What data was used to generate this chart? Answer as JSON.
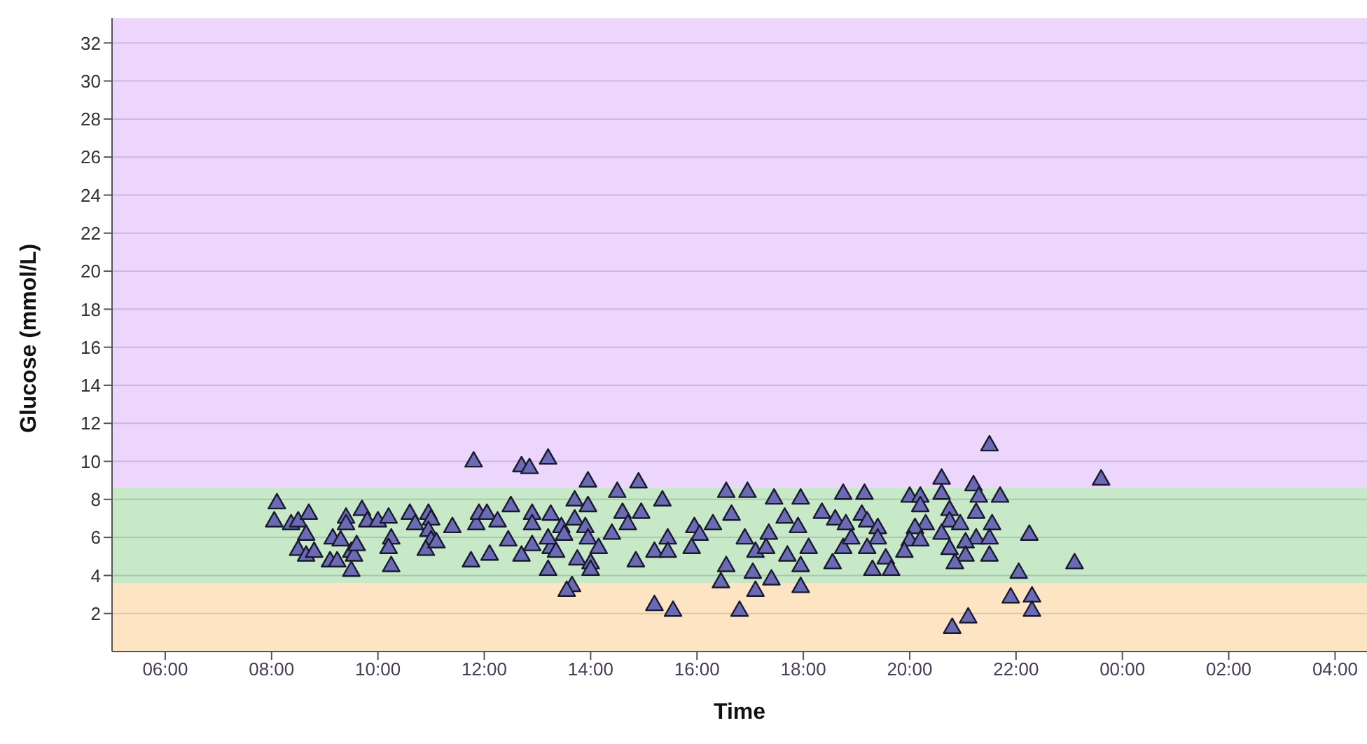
{
  "chart_data": {
    "type": "scatter",
    "xlabel": "Time",
    "ylabel": "Glucose (mmol/L)",
    "xlim": [
      "2000-01-01T05:00",
      "2000-01-02T04:36"
    ],
    "ylim": [
      0,
      33.3
    ],
    "xticks": [
      {
        "value": "2000-01-01T06:00",
        "label": "06:00"
      },
      {
        "value": "2000-01-01T08:00",
        "label": "08:00"
      },
      {
        "value": "2000-01-01T10:00",
        "label": "10:00"
      },
      {
        "value": "2000-01-01T12:00",
        "label": "12:00"
      },
      {
        "value": "2000-01-01T14:00",
        "label": "14:00"
      },
      {
        "value": "2000-01-01T16:00",
        "label": "16:00"
      },
      {
        "value": "2000-01-01T18:00",
        "label": "18:00"
      },
      {
        "value": "2000-01-01T20:00",
        "label": "20:00"
      },
      {
        "value": "2000-01-01T22:00",
        "label": "22:00"
      },
      {
        "value": "2000-01-02T00:00",
        "label": "00:00"
      },
      {
        "value": "2000-01-02T02:00",
        "label": "02:00"
      },
      {
        "value": "2000-01-02T04:00",
        "label": "04:00"
      }
    ],
    "yticks": [
      2,
      4,
      6,
      8,
      10,
      12,
      14,
      16,
      18,
      20,
      22,
      24,
      26,
      28,
      30,
      32
    ],
    "grid": "y",
    "marker": "triangle",
    "legend": false,
    "bands": [
      {
        "axis": "y",
        "from": 0,
        "to": 3.6,
        "color": "#fcdcb0"
      },
      {
        "axis": "y",
        "from": 3.6,
        "to": 8.6,
        "color": "#b4e2b4"
      },
      {
        "axis": "y",
        "from": 8.6,
        "to": 33.3,
        "color": "#e6c8fa"
      }
    ],
    "series": [
      {
        "color": "#6b6bb5",
        "x": [
          "2000-01-01T08:06",
          "2000-01-01T08:03",
          "2000-01-01T08:22",
          "2000-01-01T08:30",
          "2000-01-01T08:42",
          "2000-01-01T08:39",
          "2000-01-01T08:30",
          "2000-01-01T08:39",
          "2000-01-01T08:48",
          "2000-01-01T09:09",
          "2000-01-01T09:06",
          "2000-01-01T09:14",
          "2000-01-01T09:18",
          "2000-01-01T09:24",
          "2000-01-01T09:24",
          "2000-01-01T09:30",
          "2000-01-01T09:33",
          "2000-01-01T09:30",
          "2000-01-01T09:36",
          "2000-01-01T09:42",
          "2000-01-01T09:48",
          "2000-01-01T10:00",
          "2000-01-01T10:12",
          "2000-01-01T10:15",
          "2000-01-01T10:12",
          "2000-01-01T10:15",
          "2000-01-01T10:36",
          "2000-01-01T10:42",
          "2000-01-01T10:57",
          "2000-01-01T11:00",
          "2000-01-01T10:57",
          "2000-01-01T11:00",
          "2000-01-01T10:54",
          "2000-01-01T11:06",
          "2000-01-01T11:24",
          "2000-01-01T11:48",
          "2000-01-01T11:45",
          "2000-01-01T11:51",
          "2000-01-01T11:54",
          "2000-01-01T12:03",
          "2000-01-01T12:15",
          "2000-01-01T12:06",
          "2000-01-01T12:27",
          "2000-01-01T12:30",
          "2000-01-01T12:42",
          "2000-01-01T12:51",
          "2000-01-01T12:42",
          "2000-01-01T12:54",
          "2000-01-01T12:54",
          "2000-01-01T12:54",
          "2000-01-01T13:12",
          "2000-01-01T13:12",
          "2000-01-01T13:15",
          "2000-01-01T13:57",
          "2000-01-01T14:30",
          "2000-01-01T14:54",
          "2000-01-01T15:21",
          "2000-01-01T13:42",
          "2000-01-01T13:57",
          "2000-01-01T13:15",
          "2000-01-01T13:27",
          "2000-01-01T13:42",
          "2000-01-01T13:54",
          "2000-01-01T13:12",
          "2000-01-01T13:30",
          "2000-01-01T13:57",
          "2000-01-01T14:09",
          "2000-01-01T13:21",
          "2000-01-01T13:45",
          "2000-01-01T14:00",
          "2000-01-01T14:00",
          "2000-01-01T13:39",
          "2000-01-01T13:33",
          "2000-01-01T14:24",
          "2000-01-01T14:36",
          "2000-01-01T14:42",
          "2000-01-01T14:57",
          "2000-01-01T14:51",
          "2000-01-01T15:27",
          "2000-01-01T15:12",
          "2000-01-01T15:27",
          "2000-01-01T15:12",
          "2000-01-01T15:33",
          "2000-01-01T15:57",
          "2000-01-01T16:03",
          "2000-01-01T15:54",
          "2000-01-01T16:18",
          "2000-01-01T16:33",
          "2000-01-01T16:57",
          "2000-01-01T16:39",
          "2000-01-01T16:54",
          "2000-01-01T17:06",
          "2000-01-01T17:21",
          "2000-01-01T17:18",
          "2000-01-01T16:33",
          "2000-01-01T16:27",
          "2000-01-01T16:48",
          "2000-01-01T17:03",
          "2000-01-01T17:24",
          "2000-01-01T17:06",
          "2000-01-01T17:27",
          "2000-01-01T17:39",
          "2000-01-01T17:54",
          "2000-01-01T17:57",
          "2000-01-01T17:42",
          "2000-01-01T17:57",
          "2000-01-01T18:06",
          "2000-01-01T17:57",
          "2000-01-01T18:21",
          "2000-01-01T18:36",
          "2000-01-01T18:45",
          "2000-01-01T18:45",
          "2000-01-01T18:33",
          "2000-01-01T21:30",
          "2000-01-01T23:36",
          "2000-01-01T20:36",
          "2000-01-01T21:12",
          "2000-01-01T19:09",
          "2000-01-01T20:00",
          "2000-01-01T20:12",
          "2000-01-01T20:36",
          "2000-01-01T21:18",
          "2000-01-01T21:42",
          "2000-01-01T20:12",
          "2000-01-01T20:45",
          "2000-01-01T19:06",
          "2000-01-01T21:15",
          "2000-01-01T18:48",
          "2000-01-01T19:12",
          "2000-01-01T19:24",
          "2000-01-01T20:18",
          "2000-01-01T20:45",
          "2000-01-01T20:57",
          "2000-01-01T21:33",
          "2000-01-01T20:06",
          "2000-01-01T20:36",
          "2000-01-01T18:54",
          "2000-01-01T19:24",
          "2000-01-01T20:00",
          "2000-01-01T20:12",
          "2000-01-01T21:15",
          "2000-01-01T21:30",
          "2000-01-01T22:15",
          "2000-01-01T21:03",
          "2000-01-01T19:12",
          "2000-01-01T19:54",
          "2000-01-01T20:45",
          "2000-01-01T21:03",
          "2000-01-01T21:30",
          "2000-01-01T19:33",
          "2000-01-01T20:51",
          "2000-01-01T19:18",
          "2000-01-01T19:39",
          "2000-01-01T23:06",
          "2000-01-01T22:03",
          "2000-01-01T21:54",
          "2000-01-01T22:18",
          "2000-01-01T22:18",
          "2000-01-01T21:06",
          "2000-01-01T20:48"
        ],
        "values": [
          7.85,
          6.9,
          6.75,
          6.9,
          7.3,
          6.2,
          5.4,
          5.1,
          5.3,
          6.0,
          4.8,
          4.8,
          5.9,
          7.1,
          6.75,
          5.3,
          5.1,
          4.3,
          5.65,
          7.5,
          6.9,
          6.9,
          7.1,
          6.0,
          5.5,
          4.55,
          7.3,
          6.75,
          7.3,
          7.0,
          6.4,
          5.9,
          5.4,
          5.8,
          6.6,
          10.05,
          4.8,
          6.75,
          7.3,
          7.3,
          6.9,
          5.15,
          5.9,
          7.7,
          9.8,
          9.7,
          5.1,
          7.3,
          6.75,
          5.65,
          4.35,
          10.2,
          5.5,
          9.0,
          8.45,
          8.95,
          8.0,
          8.0,
          7.7,
          7.25,
          6.6,
          7.0,
          6.6,
          6.0,
          6.2,
          6.0,
          5.5,
          5.3,
          4.9,
          4.7,
          4.35,
          3.5,
          3.25,
          6.25,
          7.35,
          6.75,
          7.35,
          4.8,
          6.0,
          5.3,
          5.3,
          2.5,
          2.2,
          6.6,
          6.2,
          5.5,
          6.75,
          8.45,
          8.45,
          7.25,
          6.0,
          5.3,
          6.25,
          5.5,
          4.55,
          3.7,
          2.2,
          4.2,
          3.85,
          3.25,
          8.1,
          7.1,
          6.6,
          8.1,
          5.1,
          4.55,
          5.5,
          3.45,
          7.35,
          7.0,
          8.35,
          5.5,
          4.7,
          10.9,
          9.1,
          9.15,
          8.8,
          8.35,
          8.2,
          8.2,
          8.35,
          8.2,
          8.2,
          7.7,
          7.5,
          7.25,
          7.35,
          6.75,
          6.9,
          6.55,
          6.75,
          6.9,
          6.75,
          6.75,
          6.55,
          6.25,
          6.0,
          6.0,
          5.9,
          5.9,
          6.0,
          6.0,
          6.2,
          5.8,
          5.5,
          5.3,
          5.45,
          5.1,
          5.1,
          4.95,
          4.7,
          4.35,
          4.35,
          4.7,
          4.2,
          2.9,
          2.95,
          2.2,
          1.85,
          1.3
        ]
      }
    ]
  }
}
